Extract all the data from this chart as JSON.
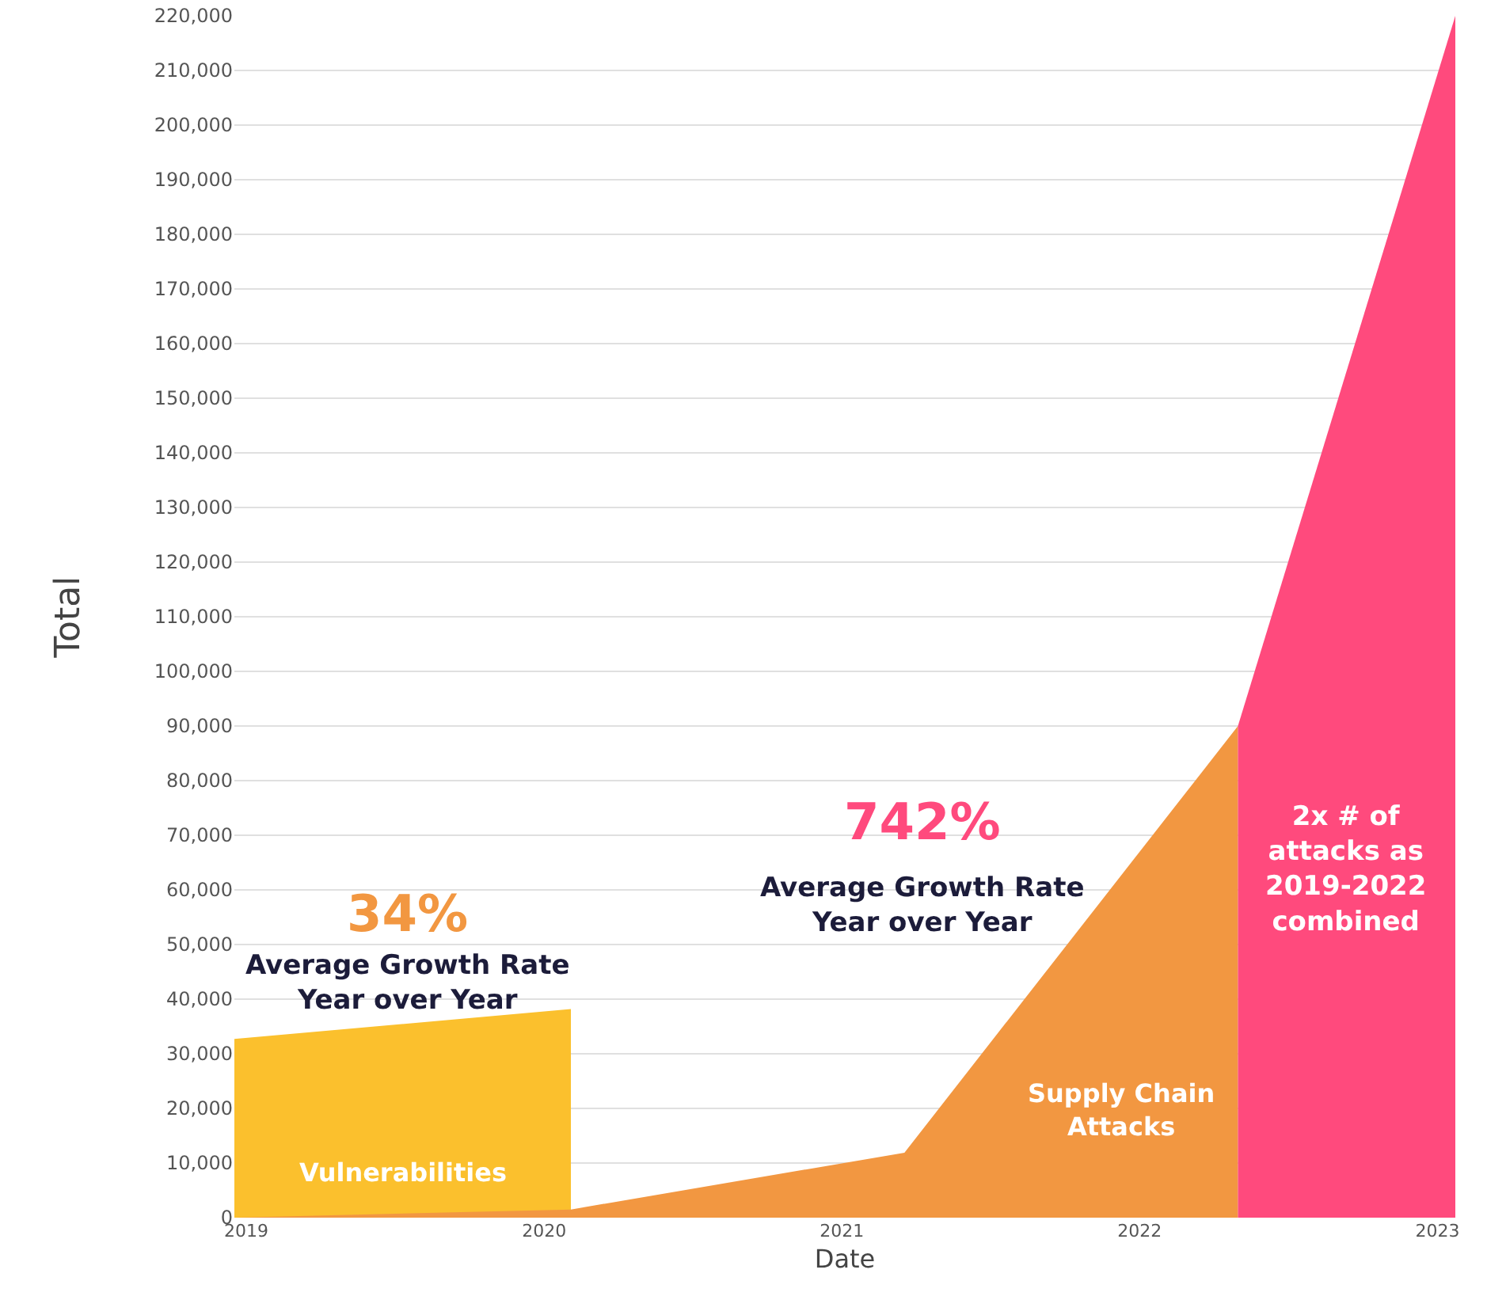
{
  "chart_data": {
    "type": "area",
    "xlabel": "Date",
    "ylabel": "Total",
    "xlim": [
      2018.96,
      2023.06
    ],
    "xticks": [
      2019,
      2020,
      2021,
      2022,
      2023
    ],
    "ylim": [
      0,
      220000
    ],
    "yticks": [
      {
        "value": 0,
        "label": "0"
      },
      {
        "value": 10000,
        "label": "10,000"
      },
      {
        "value": 20000,
        "label": "20,000"
      },
      {
        "value": 30000,
        "label": "30,000"
      },
      {
        "value": 40000,
        "label": "40,000"
      },
      {
        "value": 50000,
        "label": "50,000"
      },
      {
        "value": 60000,
        "label": "60,000"
      },
      {
        "value": 70000,
        "label": "70,000"
      },
      {
        "value": 80000,
        "label": "80,000"
      },
      {
        "value": 90000,
        "label": "90,000"
      },
      {
        "value": 100000,
        "label": "100,000"
      },
      {
        "value": 110000,
        "label": "110,000"
      },
      {
        "value": 120000,
        "label": "120,000"
      },
      {
        "value": 130000,
        "label": "130,000"
      },
      {
        "value": 140000,
        "label": "140,000"
      },
      {
        "value": 150000,
        "label": "150,000"
      },
      {
        "value": 160000,
        "label": "160,000"
      },
      {
        "value": 170000,
        "label": "170,000"
      },
      {
        "value": 180000,
        "label": "180,000"
      },
      {
        "value": 190000,
        "label": "190,000"
      },
      {
        "value": 200000,
        "label": "200,000"
      },
      {
        "value": 210000,
        "label": "210,000"
      },
      {
        "value": 220000,
        "label": "220,000"
      }
    ],
    "grid": "y",
    "legend": false,
    "series": [
      {
        "name": "Vulnerabilities",
        "color": "#fbc02d",
        "x": [
          2018.96,
          2020.09
        ],
        "values": [
          32700,
          38200
        ]
      },
      {
        "name": "Supply Chain Attacks",
        "color": "#f29741",
        "x": [
          2018.96,
          2020.09,
          2021.21,
          2022.33
        ],
        "values": [
          0,
          1500,
          11900,
          90000
        ]
      },
      {
        "color": "#ff4a7d",
        "x": [
          2022.33,
          2023.06
        ],
        "values": [
          90000,
          220000
        ]
      }
    ],
    "annotations": [
      "34%",
      "Average Growth Rate Year over Year",
      "742%",
      "Average Growth Rate Year over Year",
      "2x # of attacks as 2019-2022 combined"
    ]
  }
}
